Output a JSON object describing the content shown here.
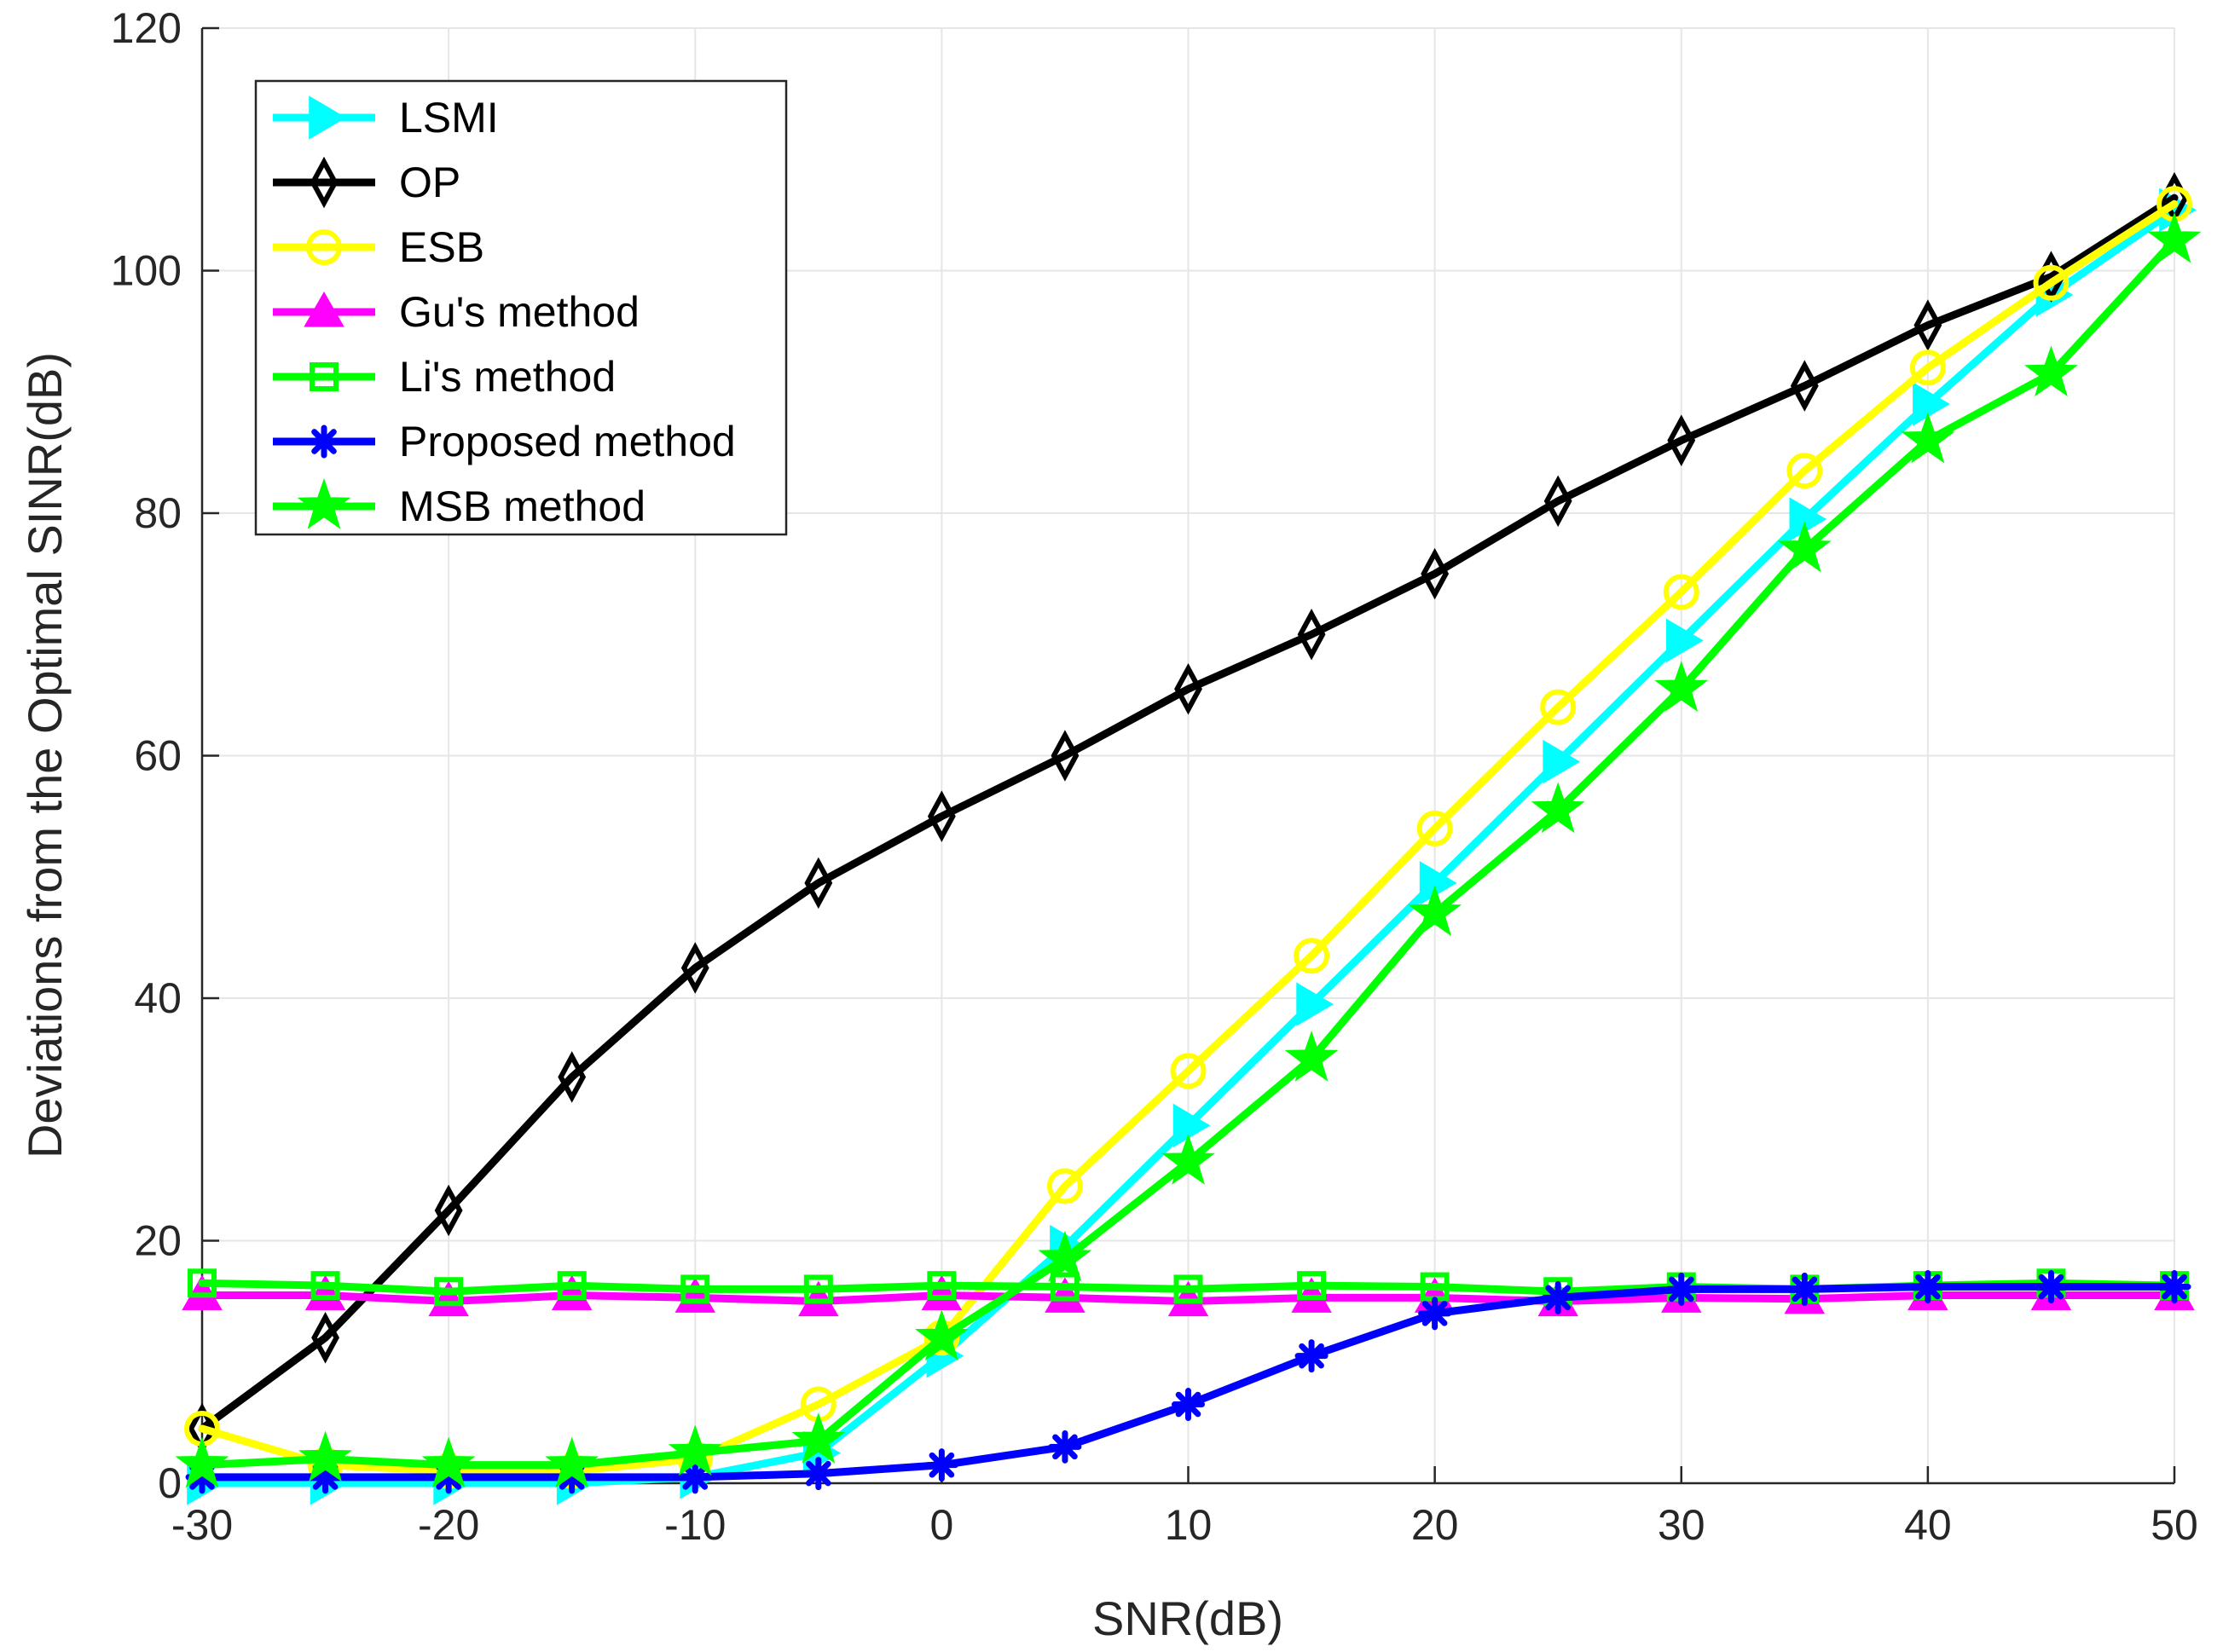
{
  "chart_data": {
    "type": "line",
    "title": "",
    "xlabel": "SNR(dB)",
    "ylabel": "Deviations from the Optimal SINR(dB)",
    "xlim": [
      -30,
      50
    ],
    "ylim": [
      0,
      120
    ],
    "xticks": [
      -30,
      -20,
      -10,
      0,
      10,
      20,
      30,
      40,
      50
    ],
    "yticks": [
      0,
      20,
      40,
      60,
      80,
      100,
      120
    ],
    "xtick_labels": [
      "-30",
      "-20",
      "-10",
      "0",
      "10",
      "20",
      "30",
      "40",
      "50"
    ],
    "ytick_labels": [
      "0",
      "20",
      "40",
      "60",
      "80",
      "100",
      "120"
    ],
    "grid": true,
    "legend_position": "top-left",
    "x": [
      -30,
      -25,
      -20,
      -15,
      -10,
      -5,
      0,
      5,
      10,
      15,
      20,
      25,
      30,
      35,
      40,
      45,
      50
    ],
    "series": [
      {
        "name": "LSMI",
        "color": "#00ffff",
        "marker": "triangle-right",
        "values": [
          0,
          0,
          0,
          0,
          0.5,
          2.5,
          10.5,
          19.5,
          29.5,
          39.5,
          49.5,
          59.5,
          69.5,
          79.5,
          89,
          98,
          105
        ]
      },
      {
        "name": "OP",
        "color": "#000000",
        "marker": "diamond",
        "values": [
          4.5,
          12,
          22.5,
          33.5,
          42.5,
          49.5,
          55,
          60,
          65.5,
          70,
          75,
          81,
          86,
          90.5,
          95.5,
          99.5,
          106
        ]
      },
      {
        "name": "ESB",
        "color": "#ffff00",
        "marker": "circle",
        "values": [
          4.5,
          1.5,
          1,
          1,
          2,
          6.5,
          12,
          24.5,
          34,
          43.5,
          54,
          64,
          73.5,
          83.5,
          92,
          99,
          105.5
        ]
      },
      {
        "name": "Gu's method",
        "color": "#ff00ff",
        "marker": "triangle-up",
        "values": [
          15.5,
          15.5,
          15,
          15.5,
          15.3,
          15,
          15.5,
          15.3,
          15,
          15.3,
          15.3,
          15,
          15.3,
          15.2,
          15.5,
          15.5,
          15.5
        ]
      },
      {
        "name": "Li's method",
        "color": "#00ff00",
        "marker": "square",
        "values": [
          16.5,
          16.3,
          15.8,
          16.3,
          16,
          16,
          16.3,
          16.2,
          16,
          16.3,
          16.2,
          15.8,
          16.2,
          16,
          16.3,
          16.5,
          16.3
        ]
      },
      {
        "name": "Proposed method",
        "color": "#0000ff",
        "marker": "asterisk",
        "values": [
          0.5,
          0.5,
          0.5,
          0.5,
          0.5,
          0.8,
          1.5,
          3,
          6.5,
          10.5,
          14,
          15.3,
          16,
          16,
          16.2,
          16.2,
          16.2
        ]
      },
      {
        "name": "MSB method",
        "color": "#00ff00",
        "marker": "star",
        "values": [
          1.5,
          2,
          1.5,
          1.5,
          2.5,
          3.5,
          12,
          18.5,
          26.5,
          35,
          47,
          55.5,
          65.5,
          77,
          86,
          91.5,
          102.5
        ]
      }
    ]
  }
}
